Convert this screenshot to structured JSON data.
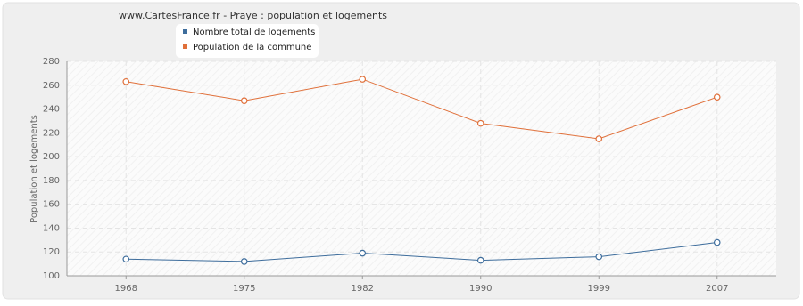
{
  "chart_data": {
    "type": "line",
    "title": "www.CartesFrance.fr - Praye : population et logements",
    "y_label": "Population et logements",
    "categories": [
      "1968",
      "1975",
      "1982",
      "1990",
      "1999",
      "2007"
    ],
    "series": [
      {
        "name": "Nombre total de logements",
        "color": "#3e6d9c",
        "values": [
          114,
          112,
          119,
          113,
          116,
          128
        ]
      },
      {
        "name": "Population de la commune",
        "color": "#e0703a",
        "values": [
          263,
          247,
          265,
          228,
          215,
          250
        ]
      }
    ],
    "ylim": [
      100,
      280
    ],
    "yticks": [
      100,
      120,
      140,
      160,
      180,
      200,
      220,
      240,
      260,
      280
    ],
    "grid": true
  }
}
